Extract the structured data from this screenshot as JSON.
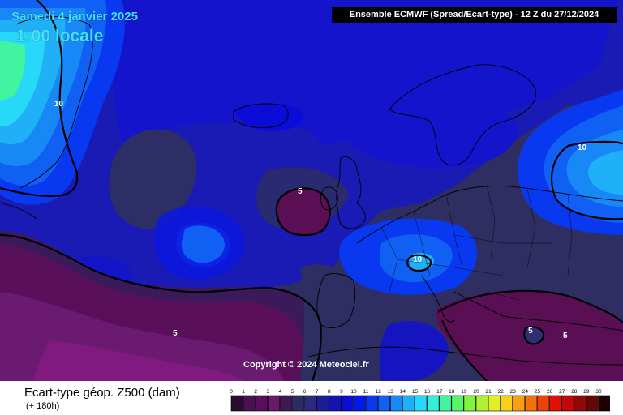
{
  "map": {
    "date": "Samedi 4 janvier 2025",
    "local_time": "1:00 locale",
    "header": "Ensemble ECMWF  (Spread/Ecart-type) - 12 Z du 27/12/2024",
    "copyright": "Copyright © 2024 Meteociel.fr",
    "contour_labels": [
      "10",
      "10",
      "10",
      "5",
      "5",
      "5",
      "5"
    ]
  },
  "footer": {
    "parameter": "Ecart-type géop. Z500 (dam)",
    "lead_time": "(+ 180h)"
  },
  "legend": {
    "ticks": [
      "0",
      "1",
      "2",
      "3",
      "4",
      "5",
      "6",
      "7",
      "8",
      "9",
      "10",
      "11",
      "12",
      "13",
      "14",
      "15",
      "16",
      "17",
      "18",
      "19",
      "20",
      "21",
      "22",
      "23",
      "24",
      "25",
      "26",
      "27",
      "28",
      "29",
      "30"
    ],
    "colors": [
      "#2a0c2e",
      "#4a1050",
      "#5a0f5c",
      "#6a1a6a",
      "#3e1a52",
      "#2c2c64",
      "#2a2a80",
      "#1c1c96",
      "#1414b4",
      "#0c0cd2",
      "#0018e8",
      "#0838f0",
      "#1060f4",
      "#1888f6",
      "#20b0f8",
      "#28d8f8",
      "#30f0d8",
      "#40f4a0",
      "#58f468",
      "#80f440",
      "#b0f030",
      "#e0f020",
      "#f8d018",
      "#f8a010",
      "#f87008",
      "#f04008",
      "#e01008",
      "#c00808",
      "#900808",
      "#600808",
      "#200000"
    ]
  },
  "colors": {
    "land_outline": "#000000",
    "low_spread": "#2e2e60",
    "very_low_spread": "#5a0f55"
  }
}
